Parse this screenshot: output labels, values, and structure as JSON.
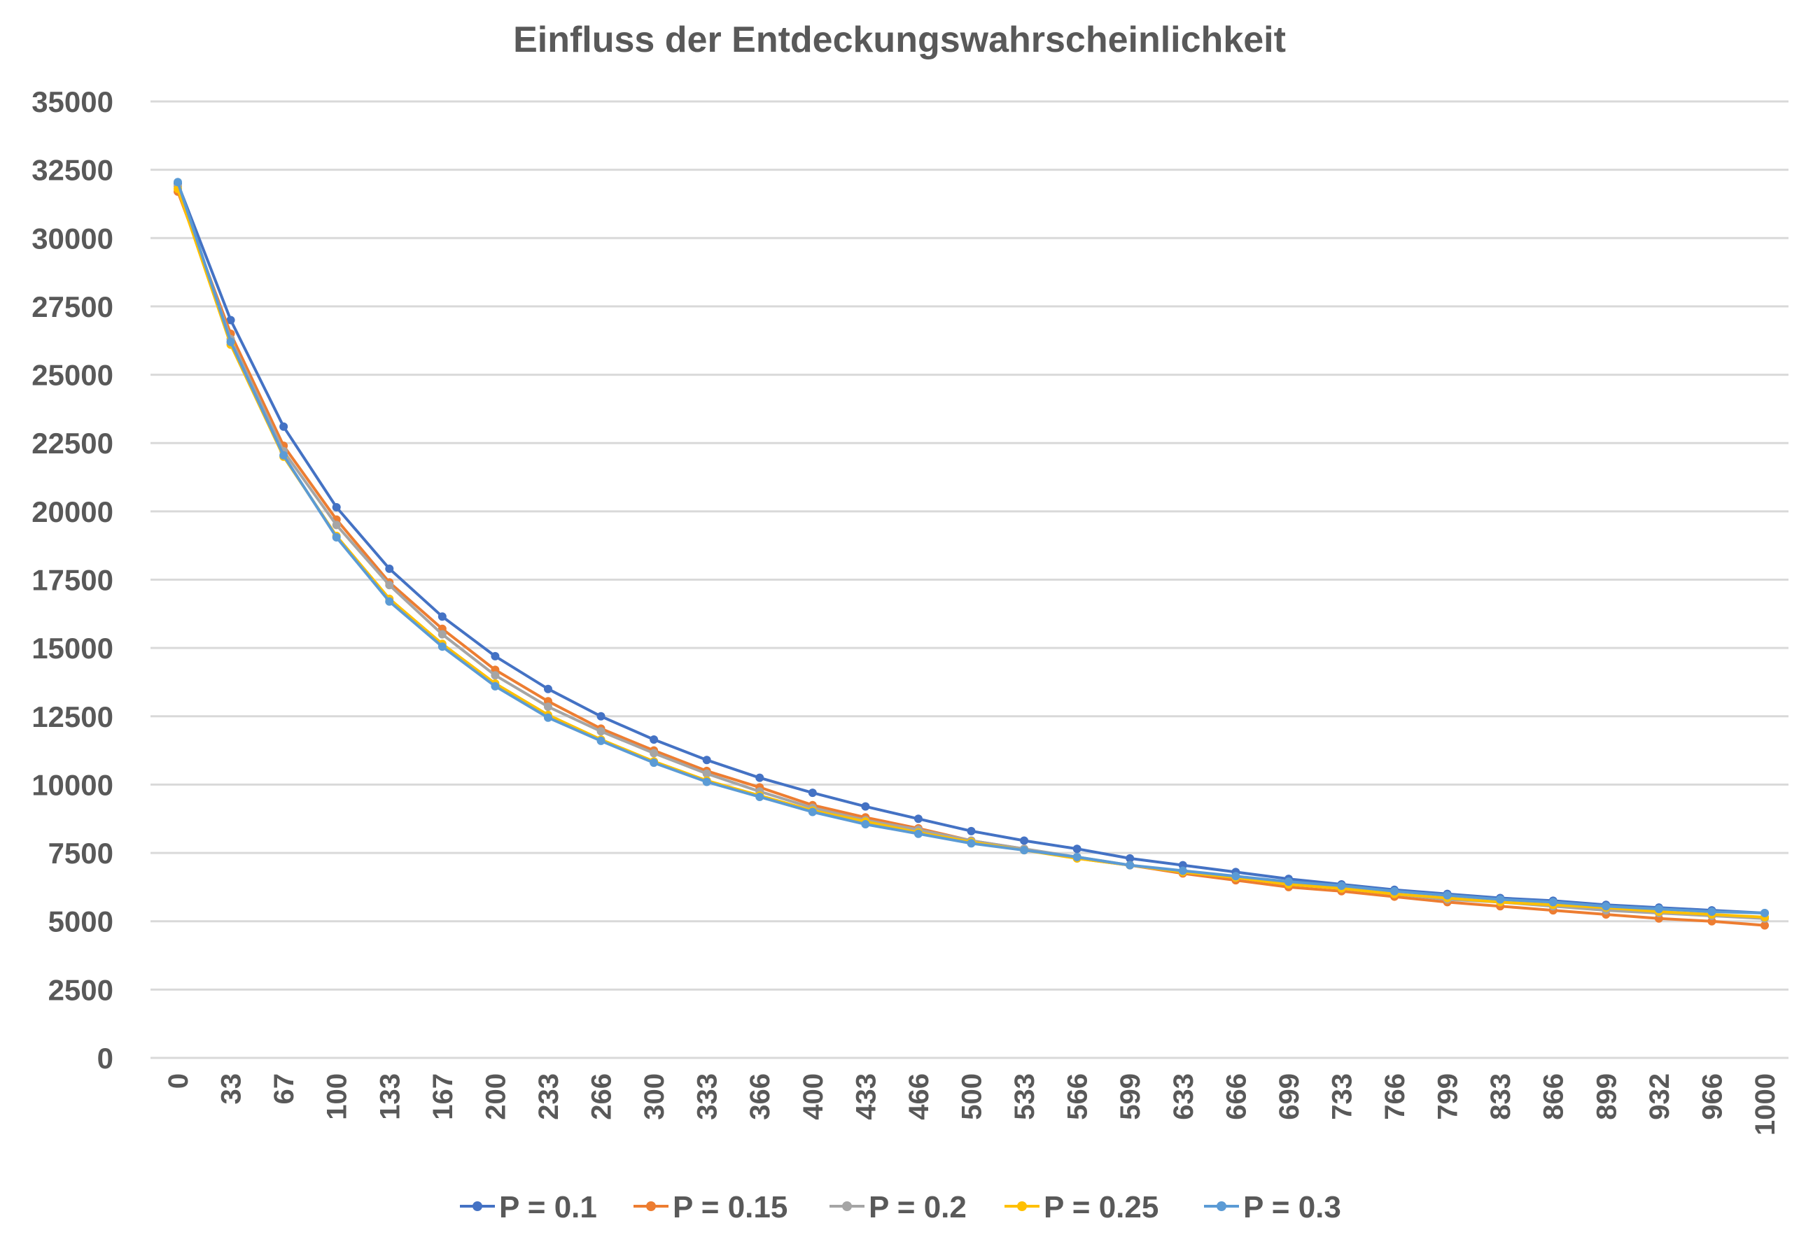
{
  "chart_data": {
    "type": "line",
    "title": "Einfluss der Entdeckungswahrscheinlichkeit",
    "xlabel": "",
    "ylabel": "",
    "ylim": [
      0,
      35000
    ],
    "yticks": [
      "0",
      "2500",
      "5000",
      "7500",
      "10000",
      "12500",
      "15000",
      "17500",
      "20000",
      "22500",
      "25000",
      "27500",
      "30000",
      "32500",
      "35000"
    ],
    "grid": true,
    "legend_position": "bottom",
    "categories": [
      "0",
      "33",
      "67",
      "100",
      "133",
      "167",
      "200",
      "233",
      "266",
      "300",
      "333",
      "366",
      "400",
      "433",
      "466",
      "500",
      "533",
      "566",
      "599",
      "633",
      "666",
      "699",
      "733",
      "766",
      "799",
      "833",
      "866",
      "899",
      "932",
      "966",
      "1000"
    ],
    "series": [
      {
        "name": "P = 0.1",
        "color": "#4472C4",
        "values": [
          32000,
          27000,
          23100,
          20150,
          17900,
          16150,
          14700,
          13500,
          12500,
          11650,
          10900,
          10250,
          9700,
          9200,
          8750,
          8300,
          7950,
          7650,
          7300,
          7050,
          6800,
          6550,
          6350,
          6150,
          6000,
          5850,
          5750,
          5600,
          5500,
          5400,
          5300
        ]
      },
      {
        "name": "P = 0.15",
        "color": "#ED7D31",
        "values": [
          31700,
          26500,
          22400,
          19700,
          17400,
          15700,
          14200,
          13050,
          12050,
          11250,
          10500,
          9900,
          9250,
          8800,
          8400,
          7950,
          7650,
          7300,
          7050,
          6750,
          6500,
          6250,
          6100,
          5900,
          5700,
          5550,
          5400,
          5250,
          5100,
          5000,
          4850
        ]
      },
      {
        "name": "P = 0.2",
        "color": "#A5A5A5",
        "values": [
          31900,
          26300,
          22200,
          19500,
          17300,
          15500,
          14000,
          12850,
          11950,
          11150,
          10400,
          9750,
          9150,
          8700,
          8350,
          7950,
          7650,
          7350,
          7050,
          6800,
          6600,
          6400,
          6200,
          6000,
          5800,
          5700,
          5550,
          5400,
          5300,
          5200,
          5100
        ]
      },
      {
        "name": "P = 0.25",
        "color": "#FFC000",
        "values": [
          31800,
          26100,
          22000,
          19100,
          16800,
          15150,
          13700,
          12550,
          11650,
          10850,
          10150,
          9600,
          9050,
          8650,
          8250,
          7900,
          7600,
          7300,
          7050,
          6800,
          6600,
          6350,
          6200,
          6000,
          5850,
          5700,
          5600,
          5500,
          5350,
          5250,
          5150
        ]
      },
      {
        "name": "P = 0.3",
        "color": "#5B9BD5",
        "values": [
          32050,
          26200,
          22050,
          19050,
          16700,
          15050,
          13600,
          12450,
          11600,
          10800,
          10100,
          9550,
          9000,
          8550,
          8200,
          7850,
          7600,
          7350,
          7050,
          6850,
          6650,
          6450,
          6300,
          6100,
          5950,
          5800,
          5700,
          5550,
          5450,
          5350,
          5300
        ]
      }
    ]
  }
}
